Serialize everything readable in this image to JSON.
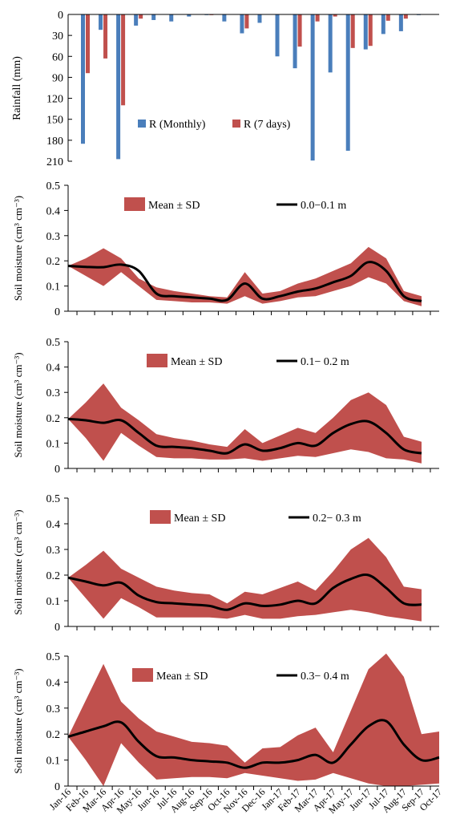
{
  "chart_data": [
    {
      "type": "bar",
      "orientation": "inverted",
      "ylabel": "Rainfall (mm)",
      "ylim": [
        0,
        210
      ],
      "yticks": [
        0,
        30,
        60,
        90,
        120,
        150,
        180,
        210
      ],
      "legend_position": "bottom-left inside plot",
      "series": [
        {
          "name": "R (Monthly)",
          "color": "#4a7ebb",
          "values": [
            185,
            22,
            207,
            16,
            8,
            10,
            3,
            1,
            10,
            27,
            12,
            60,
            77,
            209,
            83,
            195,
            50,
            28,
            24,
            1
          ]
        },
        {
          "name": "R (7 days)",
          "color": "#c0504d",
          "values": [
            84,
            63,
            130,
            6,
            0,
            0,
            0,
            1,
            0,
            20,
            0,
            0,
            46,
            10,
            3,
            48,
            45,
            9,
            6,
            0
          ]
        }
      ]
    },
    {
      "type": "area",
      "ylabel": "Soil moisture (cm³ cm⁻³)",
      "ylim": [
        0,
        0.5
      ],
      "yticks": [
        "0",
        "0.1",
        "0.2",
        "0.3",
        "0.4",
        "0.5"
      ],
      "legend": [
        "Mean ± SD",
        "0.0−0.1 m"
      ],
      "band_color": "#c0504d",
      "mean": [
        0.18,
        0.176,
        0.175,
        0.185,
        0.16,
        0.07,
        0.06,
        0.055,
        0.05,
        0.045,
        0.11,
        0.05,
        0.06,
        0.078,
        0.09,
        0.115,
        0.14,
        0.195,
        0.16,
        0.06,
        0.04
      ],
      "upper": [
        0.18,
        0.21,
        0.25,
        0.21,
        0.13,
        0.095,
        0.08,
        0.07,
        0.06,
        0.055,
        0.155,
        0.07,
        0.08,
        0.11,
        0.13,
        0.16,
        0.19,
        0.255,
        0.21,
        0.08,
        0.06
      ],
      "lower": [
        0.18,
        0.14,
        0.1,
        0.155,
        0.1,
        0.045,
        0.04,
        0.035,
        0.035,
        0.03,
        0.06,
        0.03,
        0.04,
        0.055,
        0.06,
        0.08,
        0.1,
        0.135,
        0.11,
        0.04,
        0.02
      ]
    },
    {
      "type": "area",
      "ylabel": "Soil moisture (cm³ cm⁻³)",
      "ylim": [
        0,
        0.5
      ],
      "yticks": [
        "0",
        "0.1",
        "0.2",
        "0.3",
        "0.4",
        "0.5"
      ],
      "legend": [
        "Mean ± SD",
        "0.1− 0.2 m"
      ],
      "band_color": "#c0504d",
      "mean": [
        0.195,
        0.19,
        0.18,
        0.19,
        0.14,
        0.09,
        0.085,
        0.08,
        0.07,
        0.06,
        0.095,
        0.07,
        0.08,
        0.1,
        0.09,
        0.14,
        0.175,
        0.185,
        0.14,
        0.075,
        0.06
      ],
      "upper": [
        0.195,
        0.26,
        0.335,
        0.24,
        0.19,
        0.135,
        0.12,
        0.11,
        0.095,
        0.085,
        0.155,
        0.1,
        0.13,
        0.16,
        0.14,
        0.2,
        0.27,
        0.3,
        0.25,
        0.125,
        0.105
      ],
      "lower": [
        0.195,
        0.12,
        0.03,
        0.14,
        0.09,
        0.045,
        0.04,
        0.04,
        0.035,
        0.035,
        0.04,
        0.03,
        0.04,
        0.05,
        0.045,
        0.06,
        0.075,
        0.065,
        0.04,
        0.035,
        0.02
      ]
    },
    {
      "type": "area",
      "ylabel": "Soil moisture (cm³ cm⁻³)",
      "ylim": [
        0,
        0.5
      ],
      "yticks": [
        "0",
        "0.1",
        "0.2",
        "0.3",
        "0.4",
        "0.5"
      ],
      "legend": [
        "Mean ± SD",
        "0.2− 0.3 m"
      ],
      "band_color": "#c0504d",
      "mean": [
        0.19,
        0.175,
        0.16,
        0.17,
        0.12,
        0.095,
        0.09,
        0.085,
        0.08,
        0.065,
        0.09,
        0.08,
        0.085,
        0.1,
        0.09,
        0.15,
        0.185,
        0.2,
        0.15,
        0.09,
        0.085
      ],
      "upper": [
        0.19,
        0.24,
        0.295,
        0.225,
        0.19,
        0.155,
        0.14,
        0.13,
        0.125,
        0.09,
        0.135,
        0.125,
        0.15,
        0.175,
        0.14,
        0.215,
        0.3,
        0.345,
        0.27,
        0.155,
        0.145
      ],
      "lower": [
        0.19,
        0.11,
        0.03,
        0.11,
        0.075,
        0.035,
        0.035,
        0.035,
        0.035,
        0.03,
        0.045,
        0.03,
        0.03,
        0.04,
        0.045,
        0.055,
        0.065,
        0.055,
        0.04,
        0.03,
        0.02
      ]
    },
    {
      "type": "area",
      "ylabel": "Soil moisture (cm³ cm⁻³)",
      "ylim": [
        0,
        0.5
      ],
      "yticks": [
        "0",
        "0.1",
        "0.2",
        "0.3",
        "0.4",
        "0.5"
      ],
      "legend": [
        "Mean ± SD",
        "0.3− 0.4 m"
      ],
      "band_color": "#c0504d",
      "x_categories": [
        "Jan-16",
        "Feb-16",
        "Mar-16",
        "Apr-16",
        "May-16",
        "Jun-16",
        "Jul-16",
        "Aug-16",
        "Sep-16",
        "Oct-16",
        "Nov-16",
        "Dec-16",
        "Jan-17",
        "Feb-17",
        "Mar-17",
        "Apr-17",
        "May-17",
        "Jun-17",
        "Jul-17",
        "Aug-17",
        "Sep-17",
        "Oct-17"
      ],
      "mean": [
        0.19,
        0.21,
        0.23,
        0.245,
        0.17,
        0.115,
        0.11,
        0.1,
        0.095,
        0.09,
        0.07,
        0.09,
        0.09,
        0.1,
        0.12,
        0.09,
        0.16,
        0.23,
        0.25,
        0.16,
        0.1,
        0.11
      ],
      "upper": [
        0.19,
        0.33,
        0.47,
        0.325,
        0.26,
        0.21,
        0.19,
        0.17,
        0.165,
        0.155,
        0.09,
        0.145,
        0.15,
        0.195,
        0.225,
        0.13,
        0.29,
        0.45,
        0.51,
        0.42,
        0.2,
        0.21
      ],
      "lower": [
        0.19,
        0.1,
        0.0,
        0.165,
        0.09,
        0.025,
        0.03,
        0.035,
        0.035,
        0.03,
        0.05,
        0.04,
        0.03,
        0.02,
        0.025,
        0.05,
        0.03,
        0.01,
        0.0,
        0.0,
        0.005,
        0.01
      ]
    }
  ]
}
